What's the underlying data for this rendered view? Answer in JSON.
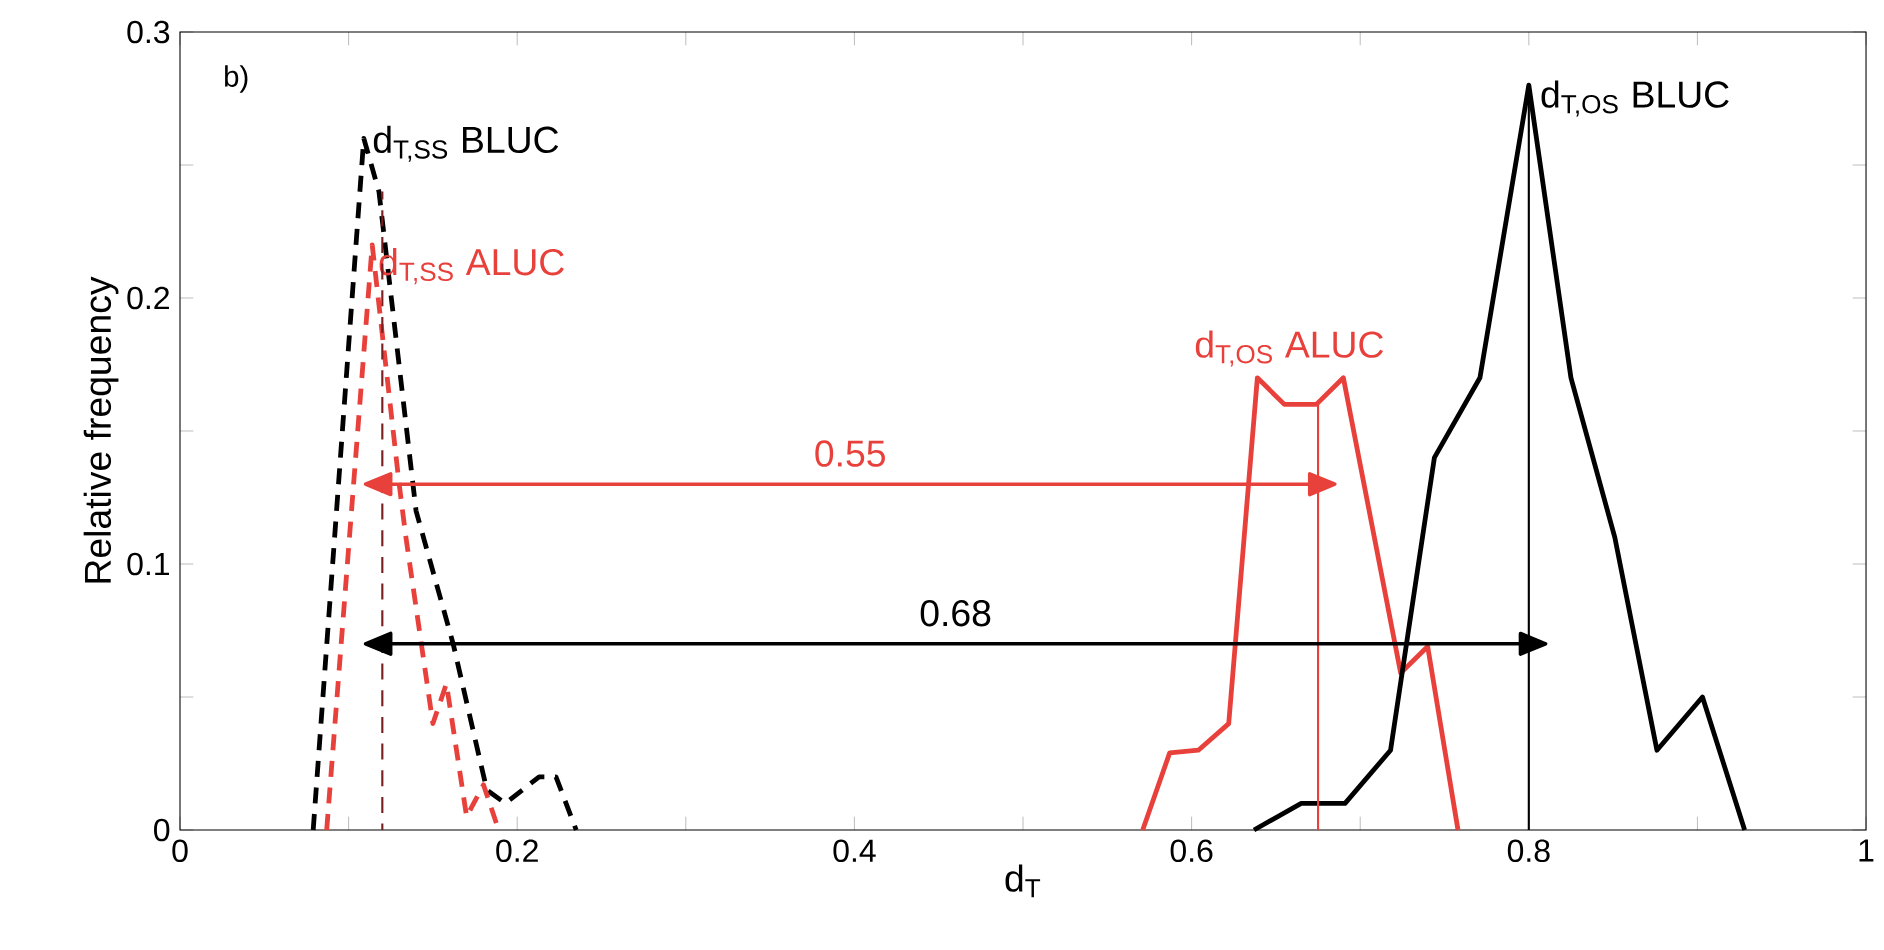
{
  "chart_data": {
    "type": "line",
    "xlabel": "d$_{T}$",
    "ylabel": "Relative frequency",
    "xlim": [
      0,
      1
    ],
    "ylim": [
      0,
      0.3
    ],
    "xticks": [
      0,
      {
        "value": 0.1,
        "label": null
      },
      0.2,
      {
        "value": 0.3,
        "label": null
      },
      0.4,
      {
        "value": 0.5,
        "label": null
      },
      0.6,
      {
        "value": 0.7,
        "label": null
      },
      0.8,
      {
        "value": 0.9,
        "label": null
      },
      1
    ],
    "yticks": [
      0,
      {
        "value": 0.05,
        "label": null
      },
      0.1,
      {
        "value": 0.15,
        "label": null
      },
      0.2,
      {
        "value": 0.25,
        "label": null
      },
      0.3
    ],
    "marker": "none",
    "annotations": [
      "b)",
      "0.55",
      "0.68"
    ],
    "series": [
      {
        "name": "d$_{T,SS}$ BLUC",
        "color": "#000000",
        "line_style": "dashed",
        "x": [
          0.079,
          0.109,
          0.118,
          0.14,
          0.162,
          0.182,
          0.193,
          0.213,
          0.223,
          0.235
        ],
        "values": [
          0,
          0.26,
          0.24,
          0.12,
          0.07,
          0.015,
          0.01,
          0.02,
          0.02,
          0
        ]
      },
      {
        "name": "d$_{T,SS}$ ALUC",
        "color": "#e8413c",
        "line_style": "dashed",
        "x": [
          0.087,
          0.114,
          0.13,
          0.134,
          0.15,
          0.158,
          0.17,
          0.18,
          0.189
        ],
        "values": [
          0,
          0.22,
          0.13,
          0.11,
          0.04,
          0.055,
          0.005,
          0.017,
          0
        ]
      },
      {
        "name": "d$_{T,OS}$ ALUC",
        "color": "#e8413c",
        "line_style": "solid",
        "x": [
          0.571,
          0.587,
          0.604,
          0.622,
          0.639,
          0.655,
          0.674,
          0.69,
          0.724,
          0.74,
          0.758
        ],
        "values": [
          0,
          0.029,
          0.03,
          0.04,
          0.17,
          0.16,
          0.16,
          0.17,
          0.059,
          0.069,
          0
        ]
      },
      {
        "name": "d$_{T,OS}$ BLUC",
        "color": "#000000",
        "line_style": "solid",
        "x": [
          0.637,
          0.665,
          0.691,
          0.718,
          0.744,
          0.771,
          0.8,
          0.825,
          0.851,
          0.876,
          0.903,
          0.928
        ],
        "values": [
          0,
          0.01,
          0.01,
          0.03,
          0.14,
          0.17,
          0.28,
          0.17,
          0.11,
          0.03,
          0.05,
          0
        ]
      },
      {
        "color": "#7a1f1f",
        "line_style": "dashed",
        "x": [
          0.12,
          0.12
        ],
        "values": [
          0,
          0.24
        ]
      },
      {
        "color": "#e8413c",
        "line_style": "solid",
        "x": [
          0.675,
          0.675
        ],
        "values": [
          0,
          0.16
        ]
      },
      {
        "color": "#000000",
        "line_style": "solid",
        "x": [
          0.8,
          0.8
        ],
        "values": [
          0,
          0.28
        ]
      },
      {
        "color": "#e8413c",
        "line_style": "solid",
        "marker": "triangle",
        "x": [
          0.12,
          0.675
        ],
        "values": [
          0.13,
          0.13
        ]
      },
      {
        "color": "#000000",
        "line_style": "solid",
        "marker": "triangle",
        "x": [
          0.12,
          0.8
        ],
        "values": [
          0.07,
          0.07
        ]
      }
    ]
  }
}
